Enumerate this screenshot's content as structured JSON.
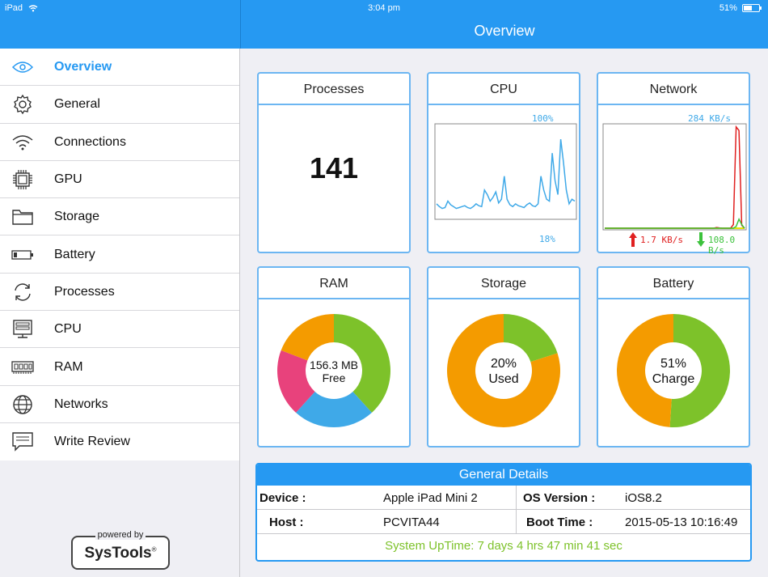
{
  "status_bar": {
    "device": "iPad",
    "time": "3:04 pm",
    "battery": "51%"
  },
  "nav": {
    "title": "Overview"
  },
  "sidebar": {
    "items": [
      {
        "label": "Overview",
        "icon": "eye-icon",
        "active": true
      },
      {
        "label": "General",
        "icon": "gear-icon"
      },
      {
        "label": "Connections",
        "icon": "wifi-icon"
      },
      {
        "label": "GPU",
        "icon": "chip-icon"
      },
      {
        "label": "Storage",
        "icon": "folder-icon"
      },
      {
        "label": "Battery",
        "icon": "battery-icon"
      },
      {
        "label": "Processes",
        "icon": "refresh-icon"
      },
      {
        "label": "CPU",
        "icon": "server-icon"
      },
      {
        "label": "RAM",
        "icon": "ram-icon"
      },
      {
        "label": "Networks",
        "icon": "globe-icon"
      },
      {
        "label": "Write Review",
        "icon": "comment-icon"
      }
    ],
    "powered_by": "powered by",
    "brand": "SysTools",
    "brand_mark": "®"
  },
  "cards": {
    "processes": {
      "title": "Processes",
      "value": "141"
    },
    "cpu": {
      "title": "CPU",
      "max_label": "100%",
      "current_label": "18%"
    },
    "network": {
      "title": "Network",
      "max_label": "284 KB/s",
      "up_label": "1.7 KB/s",
      "down_label": "108.0 B/s"
    },
    "ram": {
      "title": "RAM",
      "line1": "156.3 MB",
      "line2": "Free"
    },
    "storage": {
      "title": "Storage",
      "line1": "20%",
      "line2": "Used"
    },
    "battery": {
      "title": "Battery",
      "line1": "51%",
      "line2": "Charge"
    }
  },
  "chart_data": [
    {
      "type": "line",
      "name": "cpu",
      "ylim": [
        0,
        100
      ],
      "values": [
        15,
        12,
        10,
        11,
        18,
        14,
        12,
        10,
        11,
        12,
        13,
        11,
        10,
        12,
        15,
        13,
        12,
        30,
        25,
        18,
        22,
        28,
        16,
        20,
        45,
        20,
        14,
        12,
        15,
        13,
        12,
        11,
        14,
        16,
        13,
        12,
        15,
        45,
        30,
        20,
        18,
        70,
        40,
        25,
        85,
        60,
        30,
        15,
        20,
        18
      ],
      "color": "#3fa9e8"
    },
    {
      "type": "line",
      "name": "network",
      "ylim": [
        0,
        284
      ],
      "series": [
        {
          "values": [
            0,
            0,
            0,
            0,
            0,
            0,
            0,
            0,
            0,
            0,
            0,
            0,
            0,
            0,
            0,
            0,
            0,
            0,
            0,
            0,
            0,
            0,
            0,
            0,
            0,
            0,
            0,
            0,
            0,
            0,
            0,
            0,
            0,
            0,
            0,
            0,
            0,
            0,
            0,
            0,
            2,
            1,
            0,
            0,
            0,
            0,
            10,
            280,
            270,
            8,
            0
          ],
          "color": "#e02020"
        },
        {
          "values": [
            0,
            0,
            0,
            0,
            0,
            0,
            0,
            0,
            0,
            0,
            0,
            0,
            0,
            0,
            0,
            0,
            0,
            0,
            0,
            0,
            0,
            0,
            0,
            0,
            0,
            0,
            0,
            0,
            0,
            0,
            0,
            0,
            0,
            0,
            0,
            0,
            0,
            0,
            0,
            0,
            0,
            0,
            0,
            0,
            0,
            0,
            0,
            5,
            25,
            10,
            0
          ],
          "color": "#3cc23c"
        }
      ],
      "baseline_color": "#e6e600"
    },
    {
      "type": "pie",
      "name": "ram",
      "slices": [
        {
          "value": 36,
          "color": "#7dc22a"
        },
        {
          "value": 22,
          "color": "#3fa9e8"
        },
        {
          "value": 18,
          "color": "#e8427c"
        },
        {
          "value": 18,
          "color": "#f49b00"
        }
      ]
    },
    {
      "type": "pie",
      "name": "storage",
      "slices": [
        {
          "value": 20,
          "color": "#7dc22a"
        },
        {
          "value": 80,
          "color": "#f49b00"
        }
      ]
    },
    {
      "type": "pie",
      "name": "battery",
      "slices": [
        {
          "value": 51,
          "color": "#7dc22a"
        },
        {
          "value": 49,
          "color": "#f49b00"
        }
      ]
    }
  ],
  "details": {
    "title": "General Details",
    "device_label": "Device :",
    "device_value": "Apple iPad Mini 2",
    "os_label": "OS Version :",
    "os_value": "iOS8.2",
    "host_label": "Host :",
    "host_value": "PCVITA44",
    "boot_label": "Boot Time :",
    "boot_value": "2015-05-13 10:16:49",
    "uptime": "System UpTime: 7 days 4 hrs 47 min 41 sec"
  },
  "colors": {
    "accent": "#2699f2",
    "green": "#7dc22a",
    "orange": "#f49b00",
    "blue": "#3fa9e8",
    "pink": "#e8427c",
    "red": "#e02020"
  }
}
